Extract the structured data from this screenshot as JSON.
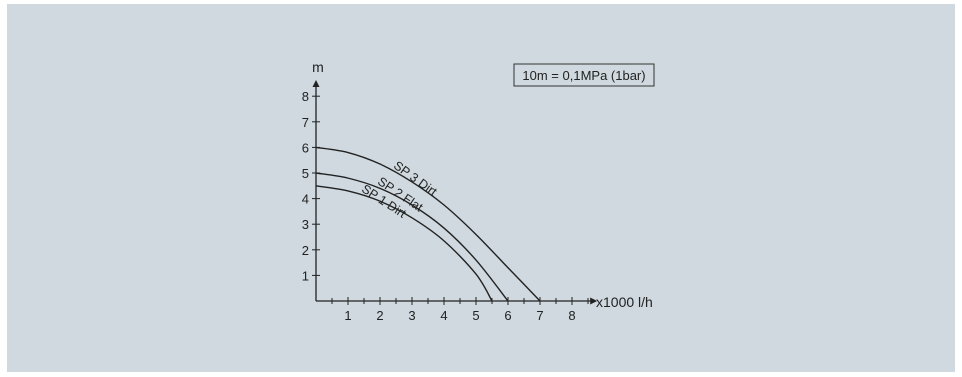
{
  "chart_data": {
    "type": "line",
    "xlabel": "x1000 l/h",
    "ylabel": "m",
    "xlim": [
      0,
      8.6
    ],
    "ylim": [
      0,
      8.4
    ],
    "x_ticks": [
      1,
      2,
      3,
      4,
      5,
      6,
      7,
      8
    ],
    "y_ticks": [
      1,
      2,
      3,
      4,
      5,
      6,
      7,
      8
    ],
    "grid": false,
    "note": "10m = 0,1MPa (1bar)",
    "series": [
      {
        "name": "SP 3 Dirt",
        "points": [
          [
            0,
            6.0
          ],
          [
            1,
            5.8
          ],
          [
            2,
            5.35
          ],
          [
            3,
            4.65
          ],
          [
            4,
            3.75
          ],
          [
            5,
            2.6
          ],
          [
            6,
            1.3
          ],
          [
            7,
            0
          ]
        ]
      },
      {
        "name": "SP 2 Flat",
        "points": [
          [
            0,
            5.0
          ],
          [
            1,
            4.8
          ],
          [
            2,
            4.4
          ],
          [
            3,
            3.75
          ],
          [
            4,
            2.85
          ],
          [
            5,
            1.6
          ],
          [
            6,
            0
          ]
        ]
      },
      {
        "name": "SP 1 Dirt",
        "points": [
          [
            0,
            4.5
          ],
          [
            1,
            4.3
          ],
          [
            2,
            3.9
          ],
          [
            3,
            3.25
          ],
          [
            4,
            2.35
          ],
          [
            5,
            1.05
          ],
          [
            5.5,
            0
          ]
        ]
      }
    ]
  }
}
